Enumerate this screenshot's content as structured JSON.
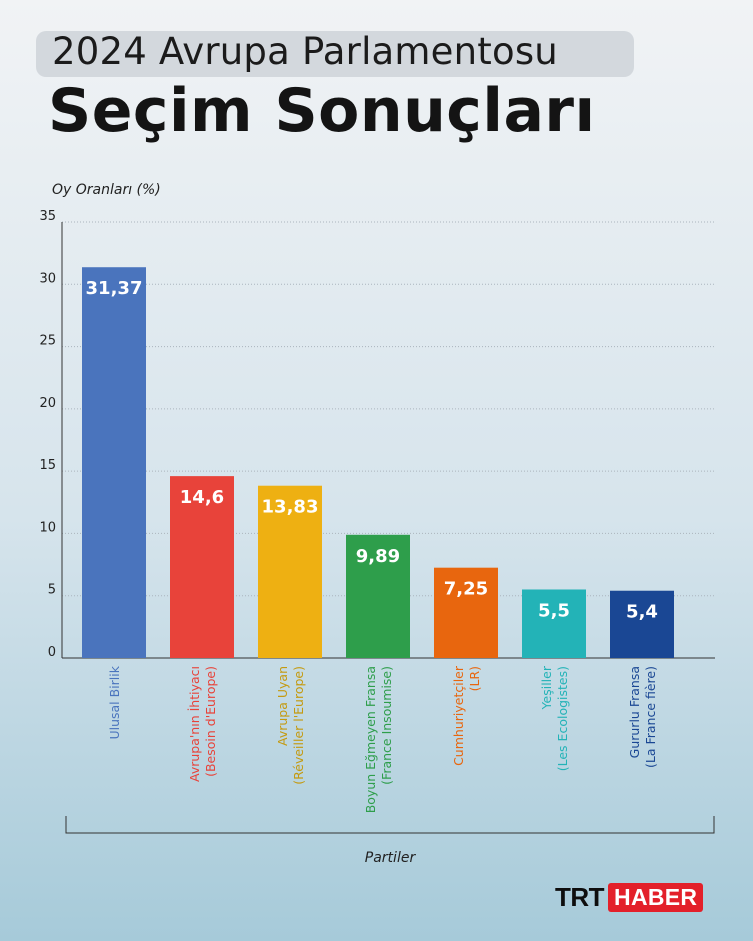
{
  "header": {
    "title_top": "2024 Avrupa Parlamentosu",
    "title_main": "Seçim Sonuçları"
  },
  "logo": {
    "part1": "TRT",
    "part2": "HABER"
  },
  "chart_data": {
    "type": "bar",
    "ylabel": "Oy Oranları (%)",
    "xlabel": "Partiler",
    "ylim": [
      0,
      35
    ],
    "yticks": [
      0,
      5,
      10,
      15,
      20,
      25,
      30,
      35
    ],
    "grid": true,
    "categories": [
      [
        "Ulusal Birlik"
      ],
      [
        "Avrupa'nın İhtiyacı",
        "(Besoin d'Europe)"
      ],
      [
        "Avrupa Uyan",
        "(Réveiller l'Europe)"
      ],
      [
        "Boyun Eğmeyen Fransa",
        "(France Insoumise)"
      ],
      [
        "Cumhuriyetçiler",
        "(LR)"
      ],
      [
        "Yeşiller",
        "(Les Ecologistes)"
      ],
      [
        "Gururlu Fransa",
        "(La France fière)"
      ]
    ],
    "values": [
      31.37,
      14.6,
      13.83,
      9.89,
      7.25,
      5.5,
      5.4
    ],
    "value_labels": [
      "31,37",
      "14,6",
      "13,83",
      "9,89",
      "7,25",
      "5,5",
      "5,4"
    ],
    "colors": [
      "#4a74bd",
      "#e8433a",
      "#eeb012",
      "#2e9e4b",
      "#e8660e",
      "#23b3b7",
      "#1a4794"
    ],
    "label_colors": [
      "#4a74bd",
      "#e8433a",
      "#c49a10",
      "#2e9e4b",
      "#e8660e",
      "#23b3b7",
      "#1a4794"
    ]
  }
}
